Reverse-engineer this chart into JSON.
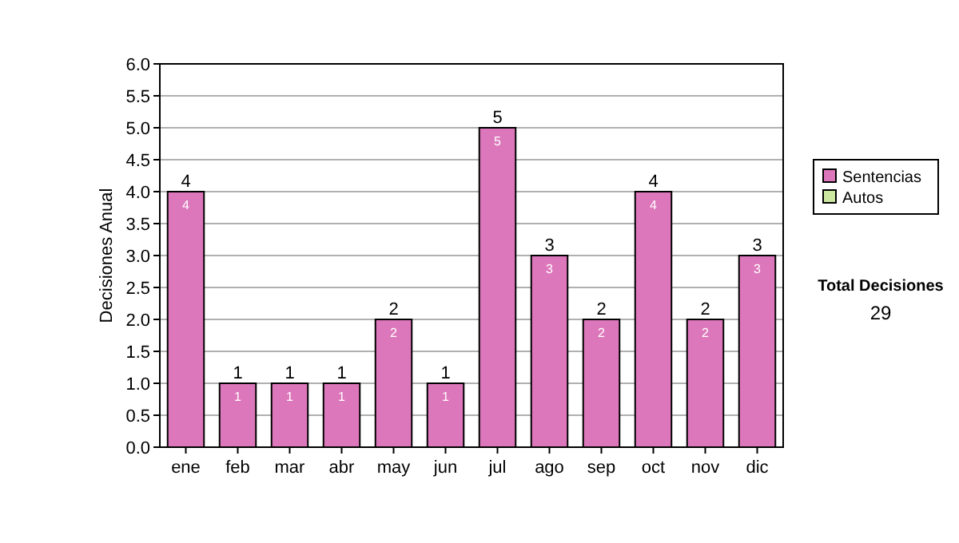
{
  "chart_data": {
    "type": "bar",
    "stacked": true,
    "ylabel": "Decisiones Anual",
    "categories": [
      "ene",
      "feb",
      "mar",
      "abr",
      "may",
      "jun",
      "jul",
      "ago",
      "sep",
      "oct",
      "nov",
      "dic"
    ],
    "series": [
      {
        "name": "Sentencias",
        "color": "#dd77bb",
        "values": [
          4,
          1,
          1,
          1,
          2,
          1,
          5,
          3,
          2,
          4,
          2,
          3
        ],
        "value_labels": [
          "4",
          "1",
          "1",
          "1",
          "2",
          "1",
          "5",
          "3",
          "2",
          "4",
          "2",
          "3"
        ]
      },
      {
        "name": "Autos",
        "color": "#cce8a0",
        "values": [
          0,
          0,
          0,
          0,
          0,
          0,
          0,
          0,
          0,
          0,
          0,
          0
        ]
      }
    ],
    "totals": [
      "4",
      "1",
      "1",
      "1",
      "2",
      "1",
      "5",
      "3",
      "2",
      "4",
      "2",
      "3"
    ],
    "ylim": [
      0,
      6
    ],
    "yticks": [
      {
        "value": 0,
        "label": "0.0"
      },
      {
        "value": 0.5,
        "label": "0.5"
      },
      {
        "value": 1,
        "label": "1.0"
      },
      {
        "value": 1.5,
        "label": "1.5"
      },
      {
        "value": 2,
        "label": "2.0"
      },
      {
        "value": 2.5,
        "label": "2.5"
      },
      {
        "value": 3,
        "label": "3.0"
      },
      {
        "value": 3.5,
        "label": "3.5"
      },
      {
        "value": 4,
        "label": "4.0"
      },
      {
        "value": 4.5,
        "label": "4.5"
      },
      {
        "value": 5,
        "label": "5.0"
      },
      {
        "value": 5.5,
        "label": "5.5"
      },
      {
        "value": 6,
        "label": "6.0"
      }
    ],
    "grid": "y",
    "legend": "right",
    "annotations": [
      "Total Decisiones",
      "29"
    ]
  }
}
